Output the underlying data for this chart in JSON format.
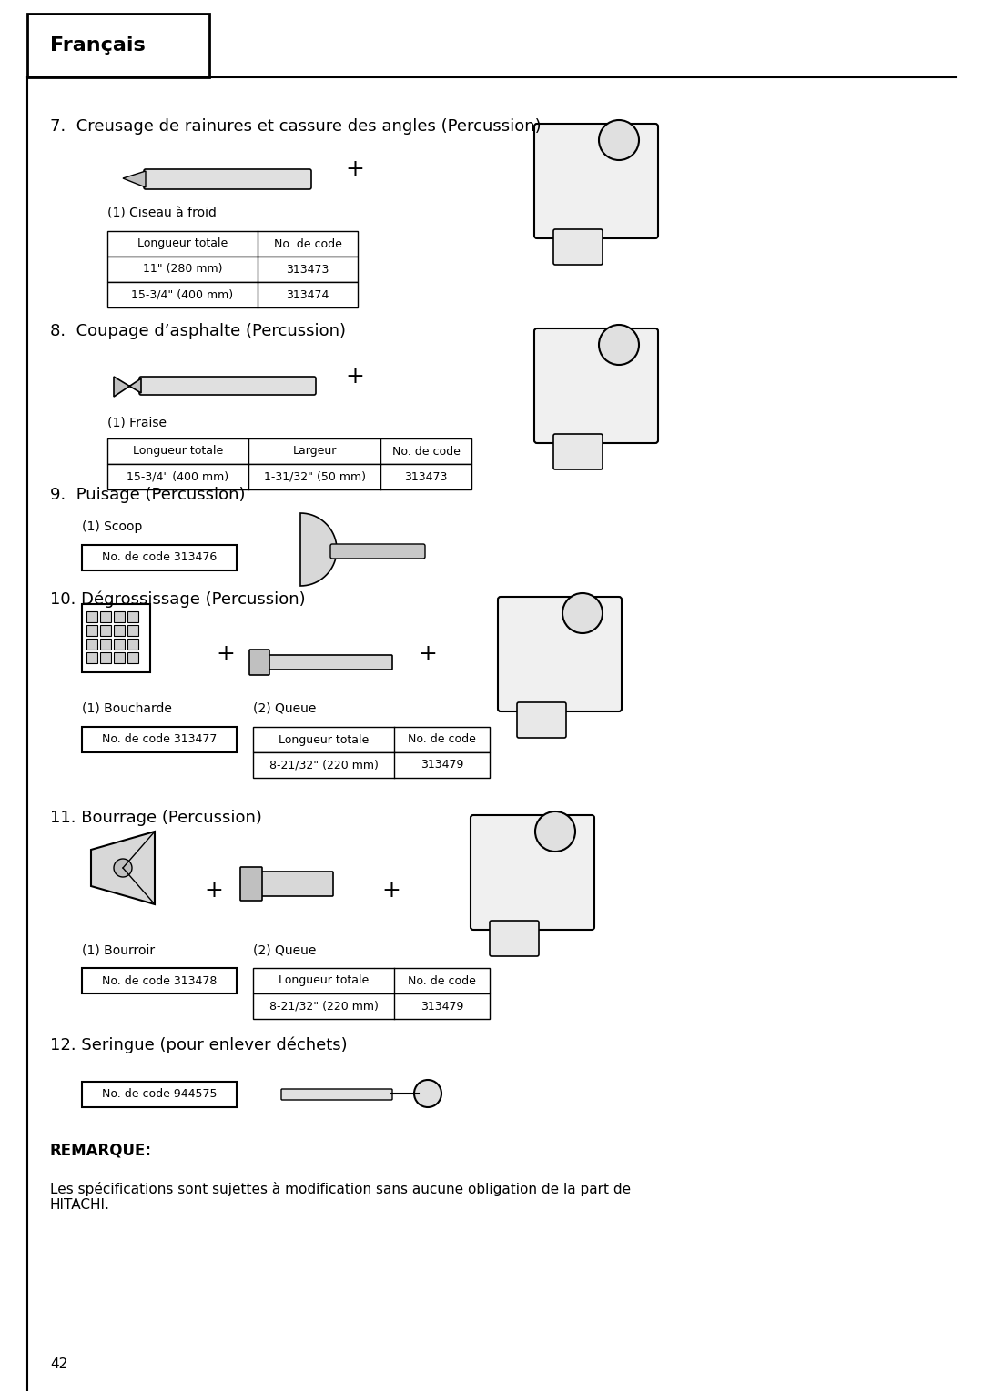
{
  "bg_color": "#ffffff",
  "header_text": "Français",
  "page_number": "42",
  "sections": [
    {
      "number": "7.",
      "title": "Creusage de rainures et cassure des angles (Percussion)",
      "part_label": "(1) Ciseau à froid",
      "table_type": "two_col",
      "col1_header": "Longueur totale",
      "col2_header": "No. de code",
      "rows": [
        [
          "11\" (280 mm)",
          "313473"
        ],
        [
          "15-3/4\" (400 mm)",
          "313474"
        ]
      ],
      "has_plus": true,
      "has_drill": true
    },
    {
      "number": "8.",
      "title": "Coupage d’asphalte (Percussion)",
      "part_label": "(1) Fraise",
      "table_type": "three_col",
      "col1_header": "Longueur totale",
      "col2_header": "Largeur",
      "col3_header": "No. de code",
      "rows": [
        [
          "15-3/4\" (400 mm)",
          "1-31/32\" (50 mm)",
          "313473"
        ]
      ],
      "has_plus": true,
      "has_drill": true
    },
    {
      "number": "9.",
      "title": "Puisage (Percussion)",
      "part_label": "(1) Scoop",
      "table_type": "single_box",
      "box_text": "No. de code 313476",
      "has_scoop": true
    },
    {
      "number": "10.",
      "title": "Dégrossissage (Percussion)",
      "part1_label": "(1) Boucharde",
      "part2_label": "(2) Queue",
      "box1_text": "No. de code 313477",
      "table_type": "two_col_with_box",
      "col1_header": "Longueur totale",
      "col2_header": "No. de code",
      "rows": [
        [
          "8-21/32\" (220 mm)",
          "313479"
        ]
      ],
      "has_plus": true,
      "has_drill": true
    },
    {
      "number": "11.",
      "title": "Bourrage (Percussion)",
      "part1_label": "(1) Bourroir",
      "part2_label": "(2) Queue",
      "box1_text": "No. de code 313478",
      "table_type": "two_col_with_box",
      "col1_header": "Longueur totale",
      "col2_header": "No. de code",
      "rows": [
        [
          "8-21/32\" (220 mm)",
          "313479"
        ]
      ],
      "has_plus": true,
      "has_drill": true
    },
    {
      "number": "12.",
      "title": "Seringue (pour enlever déchets)",
      "table_type": "single_box",
      "box_text": "No. de code 944575",
      "has_syringe": true
    }
  ],
  "note_title": "REMARQUE:",
  "note_text": "Les spécifications sont sujettes à modification sans aucune obligation de la part de\nHITACHI."
}
